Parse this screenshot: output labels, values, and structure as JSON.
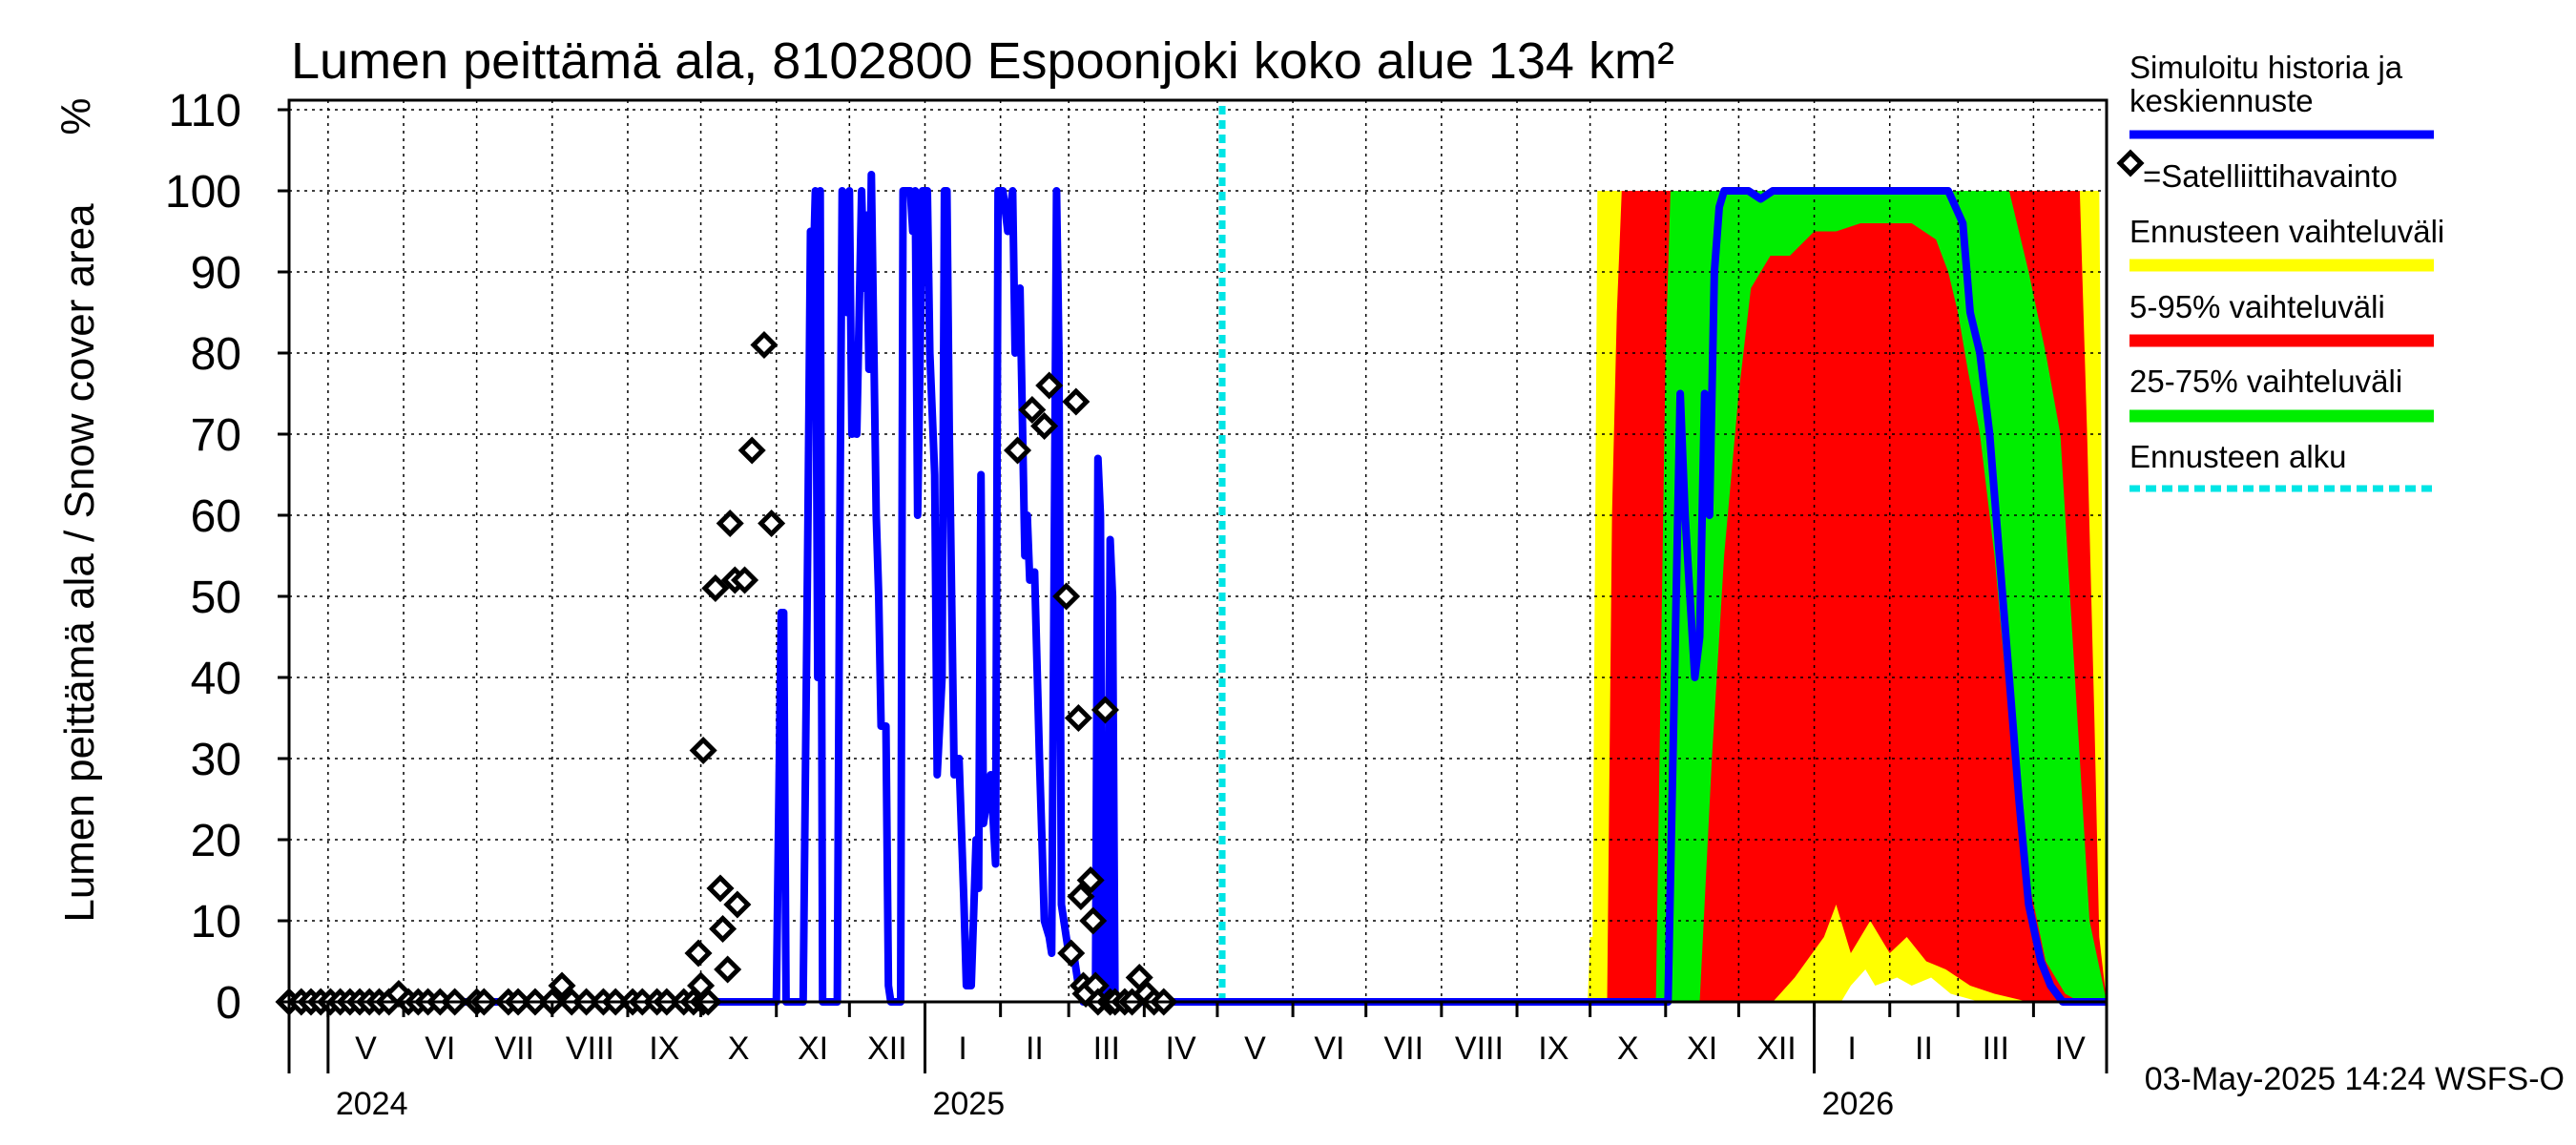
{
  "chart_data": {
    "type": "area",
    "title": "Lumen peittämä ala, 8102800 Espoonjoki koko alue 134 km²",
    "ylabel": "Lumen peittämä ala / Snow cover area",
    "yunit": "%",
    "ylim": [
      0,
      110
    ],
    "yticks": [
      0,
      10,
      20,
      30,
      40,
      50,
      60,
      70,
      80,
      90,
      100,
      110
    ],
    "xlim": [
      "2024-04-15",
      "2026-05-01"
    ],
    "month_labels": [
      "V",
      "VI",
      "VII",
      "VIII",
      "IX",
      "X",
      "XI",
      "XII",
      "I",
      "II",
      "III",
      "IV",
      "V",
      "VI",
      "VII",
      "VIII",
      "IX",
      "X",
      "XI",
      "XII",
      "I",
      "II",
      "III",
      "IV"
    ],
    "month_starts": [
      "2024-05-01",
      "2024-06-01",
      "2024-07-01",
      "2024-08-01",
      "2024-09-01",
      "2024-10-01",
      "2024-11-01",
      "2024-12-01",
      "2025-01-01",
      "2025-02-01",
      "2025-03-01",
      "2025-04-01",
      "2025-05-01",
      "2025-06-01",
      "2025-07-01",
      "2025-08-01",
      "2025-09-01",
      "2025-10-01",
      "2025-11-01",
      "2025-12-01",
      "2026-01-01",
      "2026-02-01",
      "2026-03-01",
      "2026-04-01",
      "2026-05-01"
    ],
    "year_labels": [
      {
        "label": "2024",
        "date": "2024-05-01"
      },
      {
        "label": "2025",
        "date": "2025-01-01"
      },
      {
        "label": "2026",
        "date": "2026-01-01"
      }
    ],
    "grid": true,
    "legend_position": "right",
    "legend": [
      {
        "label": "Simuloitu historia ja keskiennuste",
        "color": "#0000ff",
        "kind": "line"
      },
      {
        "label": "=Satelliittihavainto",
        "color": "#000000",
        "kind": "marker"
      },
      {
        "label": "Ennusteen vaihteluväli",
        "color": "#ffff00",
        "kind": "band"
      },
      {
        "label": "5-95% vaihteluväli",
        "color": "#ff0000",
        "kind": "band"
      },
      {
        "label": "25-75% vaihteluväli",
        "color": "#00ee00",
        "kind": "band"
      },
      {
        "label": "Ennusteen alku",
        "color": "#00e5e5",
        "kind": "dashed"
      }
    ],
    "forecast_start": "2025-05-03",
    "footer": "03-May-2025 14:24 WSFS-O",
    "series": [
      {
        "name": "Simuloitu historia ja keskiennuste",
        "color": "#0000ff",
        "points": [
          [
            "2024-04-15",
            0
          ],
          [
            "2024-11-01",
            0
          ],
          [
            "2024-11-03",
            48
          ],
          [
            "2024-11-04",
            48
          ],
          [
            "2024-11-05",
            0
          ],
          [
            "2024-11-12",
            0
          ],
          [
            "2024-11-14",
            60
          ],
          [
            "2024-11-15",
            95
          ],
          [
            "2024-11-16",
            88
          ],
          [
            "2024-11-17",
            100
          ],
          [
            "2024-11-18",
            40
          ],
          [
            "2024-11-19",
            100
          ],
          [
            "2024-11-20",
            0
          ],
          [
            "2024-11-26",
            0
          ],
          [
            "2024-11-27",
            55
          ],
          [
            "2024-11-28",
            100
          ],
          [
            "2024-11-29",
            90
          ],
          [
            "2024-11-30",
            85
          ],
          [
            "2024-12-01",
            100
          ],
          [
            "2024-12-02",
            70
          ],
          [
            "2024-12-03",
            80
          ],
          [
            "2024-12-04",
            70
          ],
          [
            "2024-12-06",
            100
          ],
          [
            "2024-12-07",
            88
          ],
          [
            "2024-12-08",
            97
          ],
          [
            "2024-12-09",
            78
          ],
          [
            "2024-12-10",
            102
          ],
          [
            "2024-12-12",
            60
          ],
          [
            "2024-12-13",
            50
          ],
          [
            "2024-12-14",
            34
          ],
          [
            "2024-12-16",
            34
          ],
          [
            "2024-12-17",
            2
          ],
          [
            "2024-12-18",
            0
          ],
          [
            "2024-12-22",
            0
          ],
          [
            "2024-12-23",
            100
          ],
          [
            "2024-12-26",
            100
          ],
          [
            "2024-12-27",
            95
          ],
          [
            "2024-12-28",
            100
          ],
          [
            "2024-12-29",
            60
          ],
          [
            "2024-12-30",
            80
          ],
          [
            "2024-12-31",
            100
          ],
          [
            "2025-01-02",
            100
          ],
          [
            "2025-01-03",
            80
          ],
          [
            "2025-01-05",
            65
          ],
          [
            "2025-01-06",
            28
          ],
          [
            "2025-01-08",
            40
          ],
          [
            "2025-01-09",
            100
          ],
          [
            "2025-01-10",
            100
          ],
          [
            "2025-01-11",
            70
          ],
          [
            "2025-01-13",
            28
          ],
          [
            "2025-01-15",
            30
          ],
          [
            "2025-01-17",
            12
          ],
          [
            "2025-01-18",
            2
          ],
          [
            "2025-01-20",
            2
          ],
          [
            "2025-01-22",
            20
          ],
          [
            "2025-01-23",
            14
          ],
          [
            "2025-01-24",
            65
          ],
          [
            "2025-01-25",
            22
          ],
          [
            "2025-01-28",
            28
          ],
          [
            "2025-01-30",
            17
          ],
          [
            "2025-01-31",
            100
          ],
          [
            "2025-02-02",
            100
          ],
          [
            "2025-02-04",
            95
          ],
          [
            "2025-02-06",
            100
          ],
          [
            "2025-02-07",
            80
          ],
          [
            "2025-02-09",
            88
          ],
          [
            "2025-02-11",
            55
          ],
          [
            "2025-02-12",
            60
          ],
          [
            "2025-02-13",
            52
          ],
          [
            "2025-02-15",
            53
          ],
          [
            "2025-02-17",
            30
          ],
          [
            "2025-02-18",
            20
          ],
          [
            "2025-02-19",
            10
          ],
          [
            "2025-02-21",
            8
          ],
          [
            "2025-02-22",
            6
          ],
          [
            "2025-02-24",
            100
          ],
          [
            "2025-02-25",
            80
          ],
          [
            "2025-02-26",
            12
          ],
          [
            "2025-02-28",
            8
          ],
          [
            "2025-03-01",
            6
          ],
          [
            "2025-03-03",
            6
          ],
          [
            "2025-03-05",
            2
          ],
          [
            "2025-03-07",
            0
          ],
          [
            "2025-03-12",
            0
          ],
          [
            "2025-03-13",
            67
          ],
          [
            "2025-03-14",
            60
          ],
          [
            "2025-03-15",
            0
          ],
          [
            "2025-03-17",
            0
          ],
          [
            "2025-03-18",
            57
          ],
          [
            "2025-03-19",
            50
          ],
          [
            "2025-03-20",
            0
          ],
          [
            "2025-05-03",
            0
          ],
          [
            "2025-11-02",
            0
          ],
          [
            "2025-11-05",
            45
          ],
          [
            "2025-11-07",
            75
          ],
          [
            "2025-11-09",
            60
          ],
          [
            "2025-11-11",
            50
          ],
          [
            "2025-11-13",
            40
          ],
          [
            "2025-11-15",
            45
          ],
          [
            "2025-11-17",
            75
          ],
          [
            "2025-11-19",
            60
          ],
          [
            "2025-11-21",
            90
          ],
          [
            "2025-11-23",
            98
          ],
          [
            "2025-11-25",
            100
          ],
          [
            "2025-12-05",
            100
          ],
          [
            "2025-12-10",
            99
          ],
          [
            "2025-12-15",
            100
          ],
          [
            "2026-02-25",
            100
          ],
          [
            "2026-03-03",
            96
          ],
          [
            "2026-03-06",
            85
          ],
          [
            "2026-03-10",
            80
          ],
          [
            "2026-03-14",
            70
          ],
          [
            "2026-03-18",
            55
          ],
          [
            "2026-03-22",
            40
          ],
          [
            "2026-03-26",
            25
          ],
          [
            "2026-03-30",
            12
          ],
          [
            "2026-04-04",
            5
          ],
          [
            "2026-04-08",
            2
          ],
          [
            "2026-04-13",
            0
          ],
          [
            "2026-05-01",
            0
          ]
        ]
      }
    ],
    "bands": [
      {
        "name": "Ennusteen vaihteluväli",
        "color": "#ffff00",
        "upper": [
          [
            "2025-09-30",
            0
          ],
          [
            "2025-10-01",
            8
          ],
          [
            "2025-10-02",
            8
          ],
          [
            "2025-10-04",
            100
          ],
          [
            "2026-04-28",
            100
          ],
          [
            "2026-04-30",
            30
          ],
          [
            "2026-05-01",
            0
          ]
        ],
        "lower": [
          [
            "2025-09-30",
            0
          ],
          [
            "2025-11-30",
            0
          ],
          [
            "2026-01-12",
            0
          ],
          [
            "2026-01-16",
            2
          ],
          [
            "2026-01-22",
            4
          ],
          [
            "2026-01-26",
            2
          ],
          [
            "2026-02-04",
            3
          ],
          [
            "2026-02-10",
            2
          ],
          [
            "2026-02-18",
            3
          ],
          [
            "2026-02-26",
            1
          ],
          [
            "2026-03-10",
            0
          ],
          [
            "2026-05-01",
            0
          ]
        ]
      },
      {
        "name": "5-95% vaihteluväli",
        "color": "#ff0000",
        "upper": [
          [
            "2025-10-08",
            0
          ],
          [
            "2025-10-10",
            60
          ],
          [
            "2025-10-12",
            85
          ],
          [
            "2025-10-14",
            100
          ],
          [
            "2026-04-20",
            100
          ],
          [
            "2026-04-23",
            70
          ],
          [
            "2026-04-26",
            35
          ],
          [
            "2026-04-28",
            8
          ],
          [
            "2026-05-01",
            0
          ]
        ],
        "lower": [
          [
            "2025-10-08",
            0
          ],
          [
            "2025-12-15",
            0
          ],
          [
            "2025-12-24",
            3
          ],
          [
            "2026-01-05",
            8
          ],
          [
            "2026-01-10",
            12
          ],
          [
            "2026-01-16",
            6
          ],
          [
            "2026-01-24",
            10
          ],
          [
            "2026-02-01",
            6
          ],
          [
            "2026-02-08",
            8
          ],
          [
            "2026-02-16",
            5
          ],
          [
            "2026-02-24",
            4
          ],
          [
            "2026-03-06",
            2
          ],
          [
            "2026-03-16",
            1
          ],
          [
            "2026-03-30",
            0
          ],
          [
            "2026-05-01",
            0
          ]
        ]
      },
      {
        "name": "25-75% vaihteluväli",
        "color": "#00ee00",
        "upper": [
          [
            "2025-10-28",
            0
          ],
          [
            "2025-10-30",
            40
          ],
          [
            "2025-11-01",
            80
          ],
          [
            "2025-11-03",
            100
          ],
          [
            "2026-03-22",
            100
          ],
          [
            "2026-03-30",
            90
          ],
          [
            "2026-04-06",
            80
          ],
          [
            "2026-04-12",
            70
          ],
          [
            "2026-04-18",
            40
          ],
          [
            "2026-04-24",
            10
          ],
          [
            "2026-05-01",
            0
          ]
        ],
        "lower": [
          [
            "2025-10-28",
            0
          ],
          [
            "2025-11-15",
            0
          ],
          [
            "2025-11-20",
            30
          ],
          [
            "2025-11-25",
            55
          ],
          [
            "2025-12-01",
            75
          ],
          [
            "2025-12-06",
            88
          ],
          [
            "2025-12-14",
            92
          ],
          [
            "2025-12-22",
            92
          ],
          [
            "2026-01-01",
            95
          ],
          [
            "2026-01-10",
            95
          ],
          [
            "2026-01-20",
            96
          ],
          [
            "2026-02-10",
            96
          ],
          [
            "2026-02-20",
            94
          ],
          [
            "2026-02-25",
            90
          ],
          [
            "2026-03-01",
            85
          ],
          [
            "2026-03-05",
            78
          ],
          [
            "2026-03-10",
            70
          ],
          [
            "2026-03-16",
            55
          ],
          [
            "2026-03-22",
            35
          ],
          [
            "2026-03-30",
            15
          ],
          [
            "2026-04-06",
            5
          ],
          [
            "2026-04-14",
            1
          ],
          [
            "2026-04-20",
            0
          ],
          [
            "2026-05-01",
            0
          ]
        ]
      }
    ],
    "observations": [
      [
        "2024-04-15",
        0
      ],
      [
        "2024-04-20",
        0
      ],
      [
        "2024-04-24",
        0
      ],
      [
        "2024-04-28",
        0
      ],
      [
        "2024-05-02",
        0
      ],
      [
        "2024-05-06",
        0
      ],
      [
        "2024-05-10",
        0
      ],
      [
        "2024-05-14",
        0
      ],
      [
        "2024-05-18",
        0
      ],
      [
        "2024-05-22",
        0
      ],
      [
        "2024-05-26",
        0
      ],
      [
        "2024-05-30",
        1
      ],
      [
        "2024-06-03",
        0
      ],
      [
        "2024-06-07",
        0
      ],
      [
        "2024-06-11",
        0
      ],
      [
        "2024-06-16",
        0
      ],
      [
        "2024-06-22",
        0
      ],
      [
        "2024-07-01",
        0
      ],
      [
        "2024-07-04",
        0
      ],
      [
        "2024-07-14",
        0
      ],
      [
        "2024-07-18",
        0
      ],
      [
        "2024-07-25",
        0
      ],
      [
        "2024-08-01",
        0
      ],
      [
        "2024-08-05",
        2
      ],
      [
        "2024-08-09",
        0
      ],
      [
        "2024-08-15",
        0
      ],
      [
        "2024-08-22",
        0
      ],
      [
        "2024-08-27",
        0
      ],
      [
        "2024-09-03",
        0
      ],
      [
        "2024-09-07",
        0
      ],
      [
        "2024-09-13",
        0
      ],
      [
        "2024-09-17",
        0
      ],
      [
        "2024-09-24",
        0
      ],
      [
        "2024-09-28",
        0
      ],
      [
        "2024-10-02",
        0
      ],
      [
        "2024-10-04",
        0
      ],
      [
        "2024-09-30",
        6
      ],
      [
        "2024-10-01",
        2
      ],
      [
        "2024-10-02",
        31
      ],
      [
        "2024-10-07",
        51
      ],
      [
        "2024-10-09",
        14
      ],
      [
        "2024-10-10",
        9
      ],
      [
        "2024-10-12",
        4
      ],
      [
        "2024-10-13",
        59
      ],
      [
        "2024-10-15",
        52
      ],
      [
        "2024-10-16",
        12
      ],
      [
        "2024-10-19",
        52
      ],
      [
        "2024-10-22",
        68
      ],
      [
        "2024-10-27",
        81
      ],
      [
        "2024-10-30",
        59
      ],
      [
        "2025-02-08",
        68
      ],
      [
        "2025-02-14",
        73
      ],
      [
        "2025-02-19",
        71
      ],
      [
        "2025-02-21",
        76
      ],
      [
        "2025-02-28",
        50
      ],
      [
        "2025-03-02",
        6
      ],
      [
        "2025-03-04",
        74
      ],
      [
        "2025-03-05",
        35
      ],
      [
        "2025-03-06",
        13
      ],
      [
        "2025-03-07",
        2
      ],
      [
        "2025-03-08",
        1
      ],
      [
        "2025-03-10",
        15
      ],
      [
        "2025-03-11",
        10
      ],
      [
        "2025-03-12",
        2
      ],
      [
        "2025-03-13",
        0
      ],
      [
        "2025-03-16",
        36
      ],
      [
        "2025-03-18",
        0
      ],
      [
        "2025-03-20",
        0
      ],
      [
        "2025-03-24",
        0
      ],
      [
        "2025-03-27",
        0
      ],
      [
        "2025-03-30",
        3
      ],
      [
        "2025-04-02",
        1
      ],
      [
        "2025-04-05",
        0
      ],
      [
        "2025-04-09",
        0
      ]
    ]
  }
}
